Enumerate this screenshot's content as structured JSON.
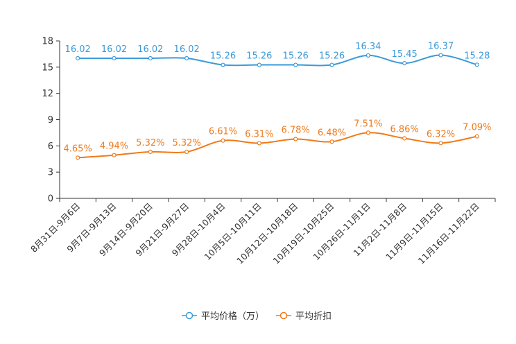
{
  "chart_data": {
    "type": "line",
    "categories": [
      "8月31日-9月6日",
      "9月7日-9月13日",
      "9月14日-9月20日",
      "9月21日-9月27日",
      "9月28日-10月4日",
      "10月5日-10月11日",
      "10月12日-10月18日",
      "10月19日-10月25日",
      "10月26日-11月1日",
      "11月2日-11月8日",
      "11月9日-11月15日",
      "11月16日-11月22日"
    ],
    "ylim": [
      0,
      18
    ],
    "yticks": [
      0,
      3,
      6,
      9,
      12,
      15,
      18
    ],
    "series": [
      {
        "name": "平均价格（万）",
        "color": "#3a9ad9",
        "values": [
          16.02,
          16.02,
          16.02,
          16.02,
          15.26,
          15.26,
          15.26,
          15.26,
          16.34,
          15.45,
          16.37,
          15.28
        ],
        "labels": [
          "16.02",
          "16.02",
          "16.02",
          "16.02",
          "15.26",
          "15.26",
          "15.26",
          "15.26",
          "16.34",
          "15.45",
          "16.37",
          "15.28"
        ]
      },
      {
        "name": "平均折扣",
        "color": "#f07a1a",
        "values": [
          4.65,
          4.94,
          5.32,
          5.32,
          6.61,
          6.31,
          6.78,
          6.48,
          7.51,
          6.86,
          6.32,
          7.09
        ],
        "labels": [
          "4.65%",
          "4.94%",
          "5.32%",
          "5.32%",
          "6.61%",
          "6.31%",
          "6.78%",
          "6.48%",
          "7.51%",
          "6.86%",
          "6.32%",
          "7.09%"
        ]
      }
    ],
    "legend": "bottom-center"
  }
}
